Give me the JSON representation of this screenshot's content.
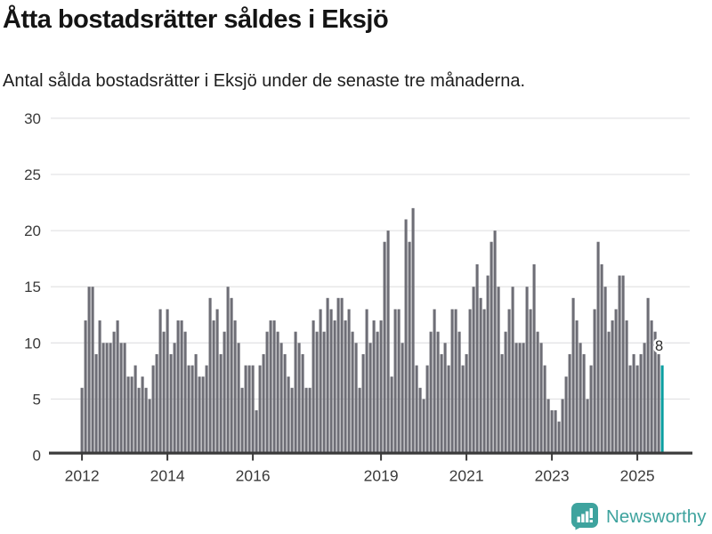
{
  "header": {
    "title": "Åtta bostadsrätter såldes i Eksjö",
    "subtitle": "Antal sålda bostadsrätter i Eksjö under de senaste tre månaderna."
  },
  "footer": {
    "brand": "Newsworthy",
    "brand_color": "#3EA39E",
    "logo_icon": "bar-chart-speech-bubble-icon"
  },
  "chart_data": {
    "type": "bar",
    "title": "Åtta bostadsrätter såldes i Eksjö",
    "subtitle": "Antal sålda bostadsrätter i Eksjö under de senaste tre månaderna.",
    "x_unit": "month",
    "x_start": "2012-01",
    "x_end": "2025-08",
    "values": [
      6,
      12,
      15,
      15,
      9,
      12,
      10,
      10,
      10,
      11,
      12,
      10,
      10,
      7,
      7,
      8,
      6,
      7,
      6,
      5,
      8,
      9,
      13,
      11,
      13,
      9,
      10,
      12,
      12,
      11,
      8,
      8,
      9,
      7,
      7,
      8,
      14,
      12,
      13,
      9,
      11,
      15,
      14,
      12,
      10,
      6,
      8,
      8,
      8,
      4,
      8,
      9,
      11,
      12,
      12,
      11,
      10,
      9,
      7,
      6,
      11,
      10,
      9,
      6,
      6,
      12,
      11,
      13,
      11,
      14,
      13,
      12,
      14,
      14,
      12,
      13,
      11,
      10,
      6,
      9,
      13,
      10,
      12,
      11,
      12,
      19,
      20,
      7,
      13,
      13,
      10,
      21,
      19,
      22,
      8,
      6,
      5,
      8,
      11,
      13,
      11,
      9,
      10,
      8,
      13,
      13,
      11,
      8,
      9,
      13,
      15,
      17,
      14,
      13,
      16,
      19,
      20,
      15,
      9,
      11,
      13,
      15,
      10,
      10,
      10,
      15,
      13,
      17,
      11,
      10,
      8,
      5,
      4,
      4,
      3,
      5,
      7,
      9,
      14,
      12,
      10,
      9,
      5,
      8,
      13,
      19,
      17,
      15,
      11,
      12,
      13,
      16,
      16,
      12,
      8,
      9,
      8,
      9,
      10,
      14,
      12,
      11,
      9,
      8
    ],
    "highlight_last": {
      "label": "8",
      "value": 8,
      "color": "#0A9EA0",
      "x": "2025-08"
    },
    "bar_color": "#6E6E76",
    "ylim": [
      0,
      30
    ],
    "yticks": [
      0,
      5,
      10,
      15,
      20,
      25,
      30
    ],
    "xticks": [
      {
        "label": "2012",
        "index": 0
      },
      {
        "label": "2014",
        "index": 24
      },
      {
        "label": "2016",
        "index": 48
      },
      {
        "label": "2019",
        "index": 84
      },
      {
        "label": "2021",
        "index": 108
      },
      {
        "label": "2023",
        "index": 132
      },
      {
        "label": "2025",
        "index": 156
      }
    ],
    "grid": true,
    "legend": "none",
    "grid_color": "#E4E4E6",
    "axis_color": "#3A3A3A",
    "tick_label_color": "#3A3A3A",
    "value_label_color": "#2B2B2B"
  }
}
